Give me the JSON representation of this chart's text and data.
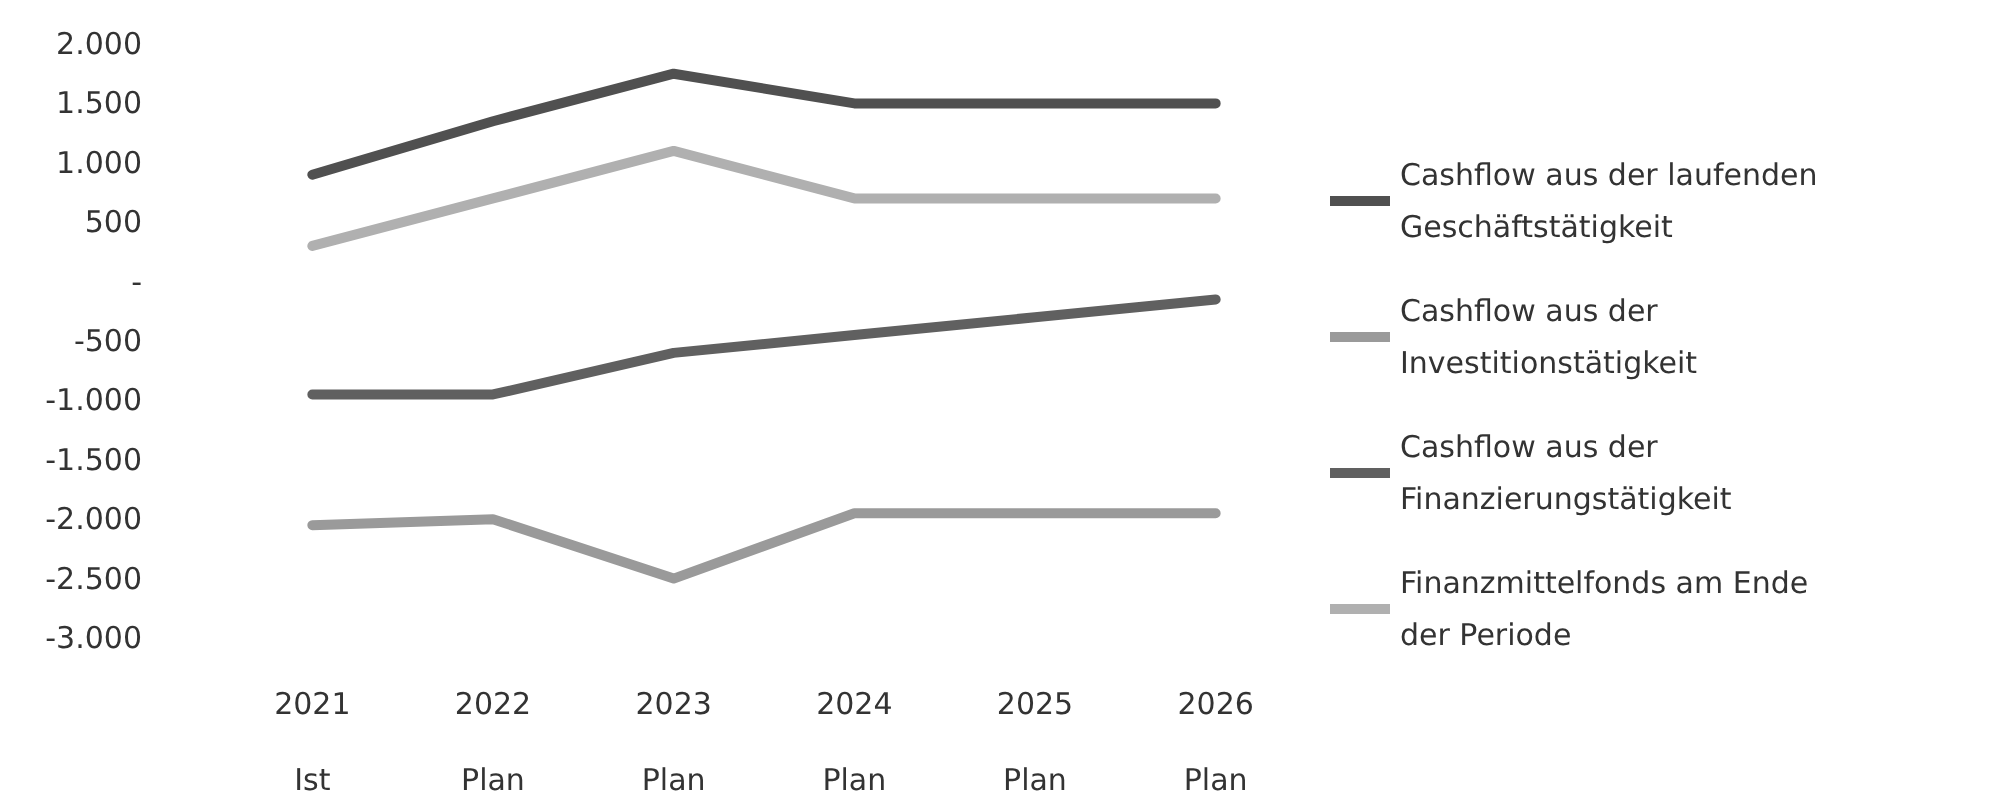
{
  "chart_data": {
    "type": "line",
    "categories": [
      "2021\nIst",
      "2022\nPlan",
      "2023\nPlan",
      "2024\nPlan",
      "2025\nPlan",
      "2026\nPlan"
    ],
    "series": [
      {
        "name": "Cashflow aus der laufenden Geschäftstätigkeit",
        "color": "#505050",
        "values": [
          900,
          1350,
          1750,
          1500,
          1500,
          1500
        ]
      },
      {
        "name": "Cashflow aus der Investitionstätigkeit",
        "color": "#9a9a9a",
        "values": [
          -2050,
          -2000,
          -2500,
          -1950,
          -1950,
          -1950
        ]
      },
      {
        "name": "Cashflow aus der Finanzierungstätigkeit",
        "color": "#606060",
        "values": [
          -950,
          -950,
          -600,
          -450,
          -300,
          -150
        ]
      },
      {
        "name": "Finanzmittelfonds am Ende der Periode",
        "color": "#b0b0b0",
        "values": [
          300,
          700,
          1100,
          700,
          700,
          700
        ]
      }
    ],
    "ylim": [
      -3000,
      2000
    ],
    "yticks": [
      {
        "value": -3000,
        "label": "-3.000"
      },
      {
        "value": -2500,
        "label": "-2.500"
      },
      {
        "value": -2000,
        "label": "-2.000"
      },
      {
        "value": -1500,
        "label": "-1.500"
      },
      {
        "value": -1000,
        "label": "-1.000"
      },
      {
        "value": -500,
        "label": "-500"
      },
      {
        "value": 0,
        "label": "-"
      },
      {
        "value": 500,
        "label": "500"
      },
      {
        "value": 1000,
        "label": "1.000"
      },
      {
        "value": 1500,
        "label": "1.500"
      },
      {
        "value": 2000,
        "label": "2.000"
      }
    ],
    "grid": false,
    "legend": "right",
    "marker": "none",
    "line_style": "solid"
  }
}
